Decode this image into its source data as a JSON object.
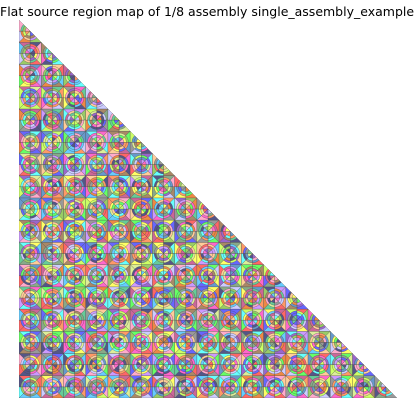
{
  "title": "Flat source region map of 1/8 assembly single_assembly_example",
  "map": {
    "symmetry": "1/8 assembly",
    "lattice": "square",
    "pins_per_side": 17,
    "palette": [
      "#ff66cc",
      "#66ff66",
      "#6666ff",
      "#ffff66",
      "#66ffff",
      "#ff9966",
      "#cc99ff",
      "#999999",
      "#99cc66",
      "#ffcc99",
      "#6699cc",
      "#cc6699",
      "#66cc99",
      "#ccff66",
      "#9966cc",
      "#ff6666",
      "#66ccff",
      "#aa8866",
      "#ccccff",
      "#88aa88",
      "#ffaacc",
      "#555588",
      "#ddee99",
      "#ee8844"
    ],
    "background": "#ffffff",
    "edge_color": "#444444"
  }
}
